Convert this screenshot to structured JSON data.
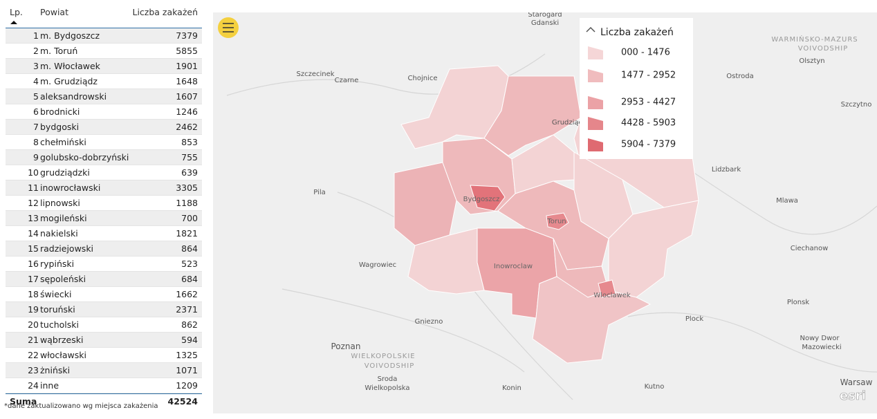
{
  "table": {
    "headers": [
      "Lp.",
      "Powiat",
      "Liczba zakażeń"
    ],
    "rows": [
      [
        1,
        "m. Bydgoszcz",
        7379
      ],
      [
        2,
        "m. Toruń",
        5855
      ],
      [
        3,
        "m. Włocławek",
        1901
      ],
      [
        4,
        "m. Grudziądz",
        1648
      ],
      [
        5,
        "aleksandrowski",
        1607
      ],
      [
        6,
        "brodnicki",
        1246
      ],
      [
        7,
        "bydgoski",
        2462
      ],
      [
        8,
        "chełmiński",
        853
      ],
      [
        9,
        "golubsko-dobrzyński",
        755
      ],
      [
        10,
        "grudziądzki",
        639
      ],
      [
        11,
        "inowrocławski",
        3305
      ],
      [
        12,
        "lipnowski",
        1188
      ],
      [
        13,
        "mogileński",
        700
      ],
      [
        14,
        "nakielski",
        1821
      ],
      [
        15,
        "radziejowski",
        864
      ],
      [
        16,
        "rypiński",
        523
      ],
      [
        17,
        "sępoleński",
        684
      ],
      [
        18,
        "świecki",
        1662
      ],
      [
        19,
        "toruński",
        2371
      ],
      [
        20,
        "tucholski",
        862
      ],
      [
        21,
        "wąbrzeski",
        594
      ],
      [
        22,
        "włocławski",
        1325
      ],
      [
        23,
        "żniński",
        1071
      ],
      [
        24,
        "inne",
        1209
      ]
    ],
    "total": {
      "label": "Suma",
      "value": 42524
    }
  },
  "footnote": "*dane zaktualizowano wg miejsca zakażenia",
  "map": {
    "legend": {
      "title": "Liczba zakażeń",
      "items": [
        "000 - 1476",
        "1477 - 2952",
        "2953 - 4427",
        "4428 - 5903",
        "5904 - 7379"
      ]
    },
    "places": [
      "Starogard",
      "Gdanski",
      "WARMIŃSKO-MAZURS",
      "VOIVODSHIP",
      "Olsztyn",
      "Szczecinek",
      "Czarne",
      "Chojnice",
      "Ostroda",
      "Szczytno",
      "Grudziądz",
      "Lidzbark",
      "Pila",
      "Bydgoszcz",
      "Torun",
      "Mlawa",
      "Ciechanow",
      "Wagrowiec",
      "Inowroclaw",
      "Wloclawek",
      "Plonsk",
      "Plock",
      "Gniezno",
      "Poznan",
      "WIELKOPOLSKIE",
      "VOIVODSHIP",
      "Nowy Dwor",
      "Mazowiecki",
      "Sroda",
      "Wielkopolska",
      "Konin",
      "Kutno",
      "Warsaw"
    ],
    "attribution": "esri"
  }
}
